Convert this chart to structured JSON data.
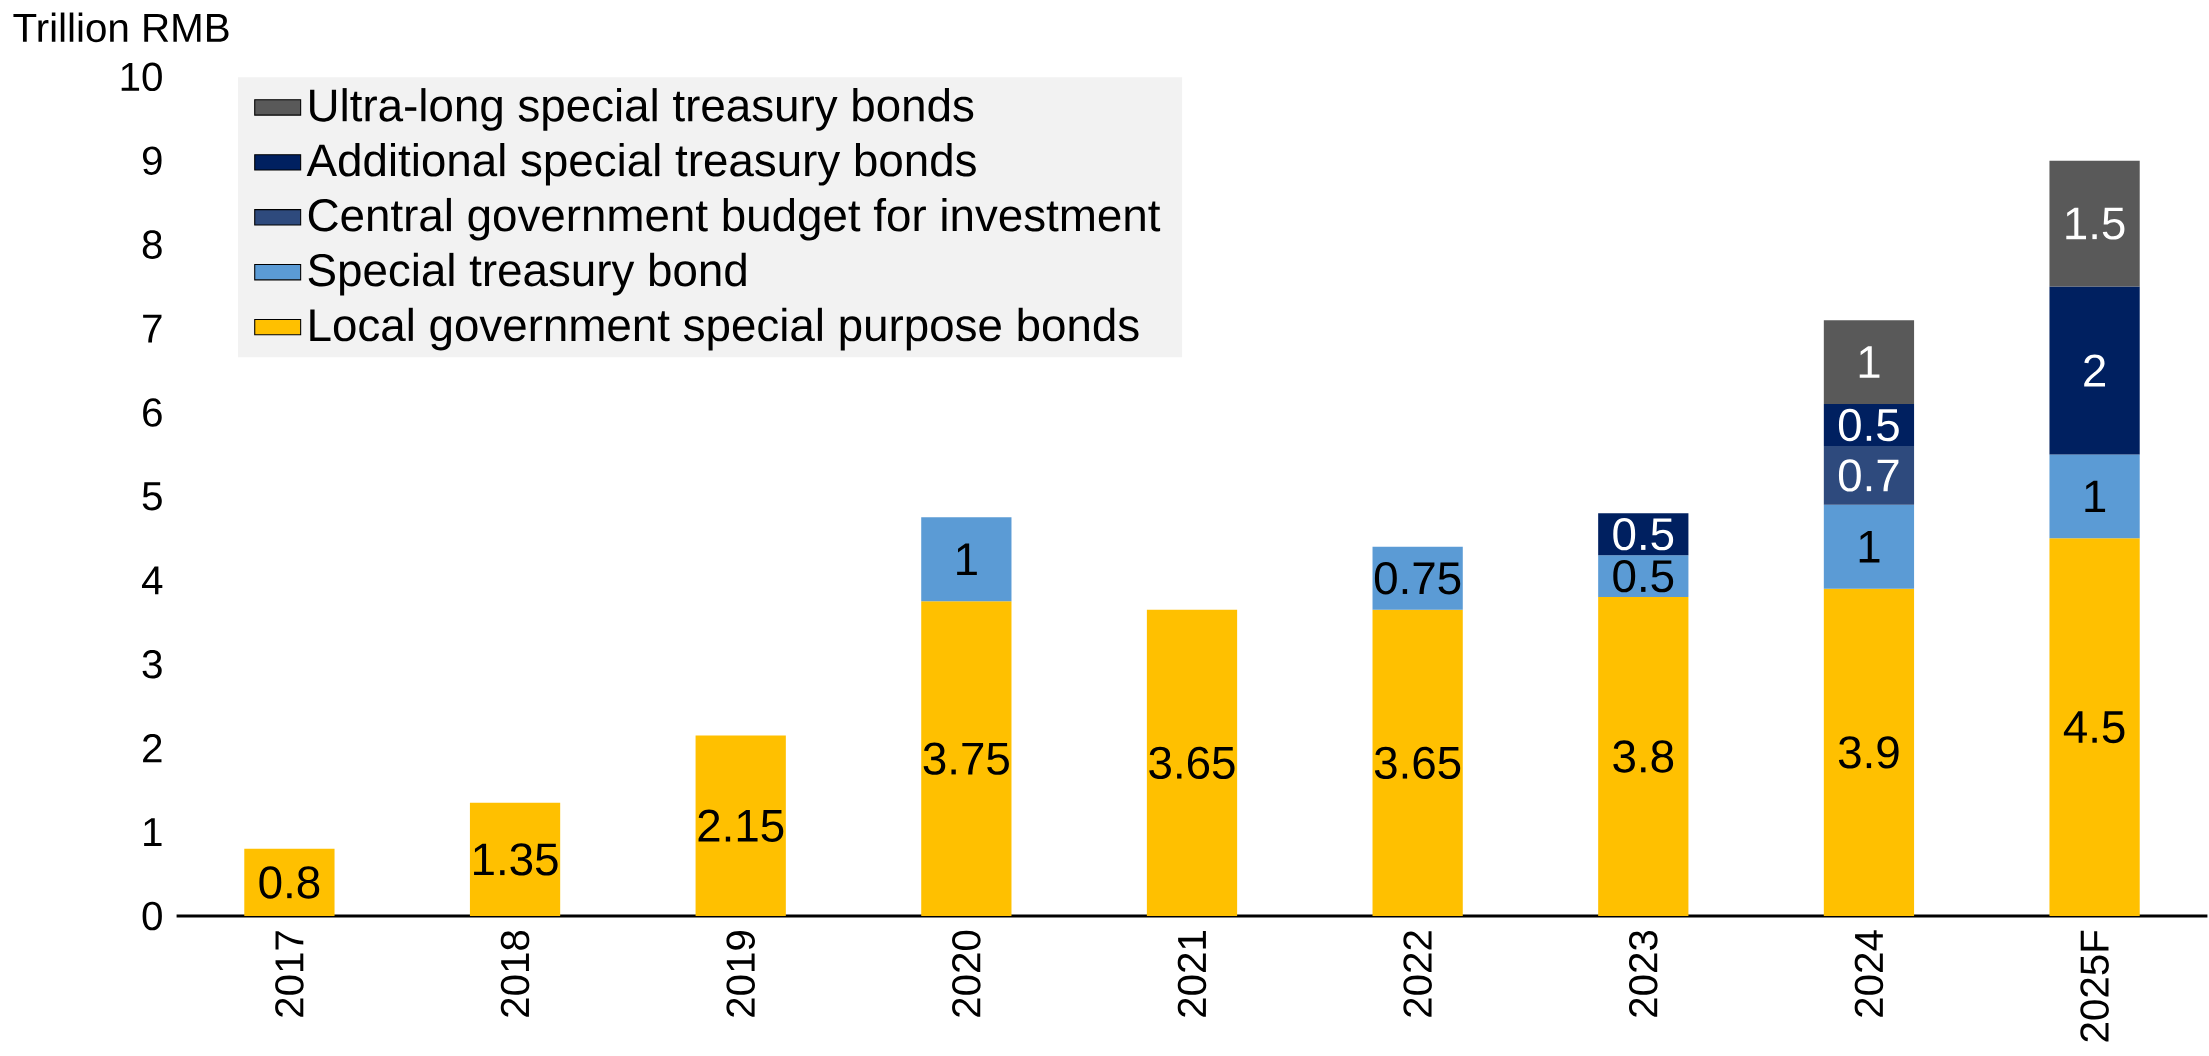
{
  "chart_data": {
    "type": "bar",
    "stacked": true,
    "ylabel": "Trillion RMB",
    "categories": [
      "2017",
      "2018",
      "2019",
      "2020",
      "2021",
      "2022",
      "2023",
      "2024",
      "2025F"
    ],
    "series": [
      {
        "name": "Local government special purpose bonds",
        "color": "#ffc000",
        "values": [
          0.8,
          1.35,
          2.15,
          3.75,
          3.65,
          3.65,
          3.8,
          3.9,
          4.5
        ]
      },
      {
        "name": "Special treasury bond",
        "color": "#5b9bd5",
        "values": [
          null,
          null,
          null,
          1,
          null,
          0.75,
          0.5,
          1,
          1
        ]
      },
      {
        "name": "Central government budget for investment",
        "color": "#2e4a7d",
        "values": [
          null,
          null,
          null,
          null,
          null,
          null,
          null,
          0.7,
          null
        ]
      },
      {
        "name": "Additional special treasury bonds",
        "color": "#002060",
        "values": [
          null,
          null,
          null,
          null,
          null,
          null,
          0.5,
          0.5,
          2
        ]
      },
      {
        "name": "Ultra-long special treasury bonds",
        "color": "#595959",
        "values": [
          null,
          null,
          null,
          null,
          null,
          null,
          null,
          1,
          1.5
        ]
      }
    ],
    "ylim": [
      0,
      10
    ],
    "yticks": [
      0,
      1,
      2,
      3,
      4,
      5,
      6,
      7,
      8,
      9,
      10
    ],
    "data_labels": true,
    "legend": "top left",
    "grid": false
  }
}
